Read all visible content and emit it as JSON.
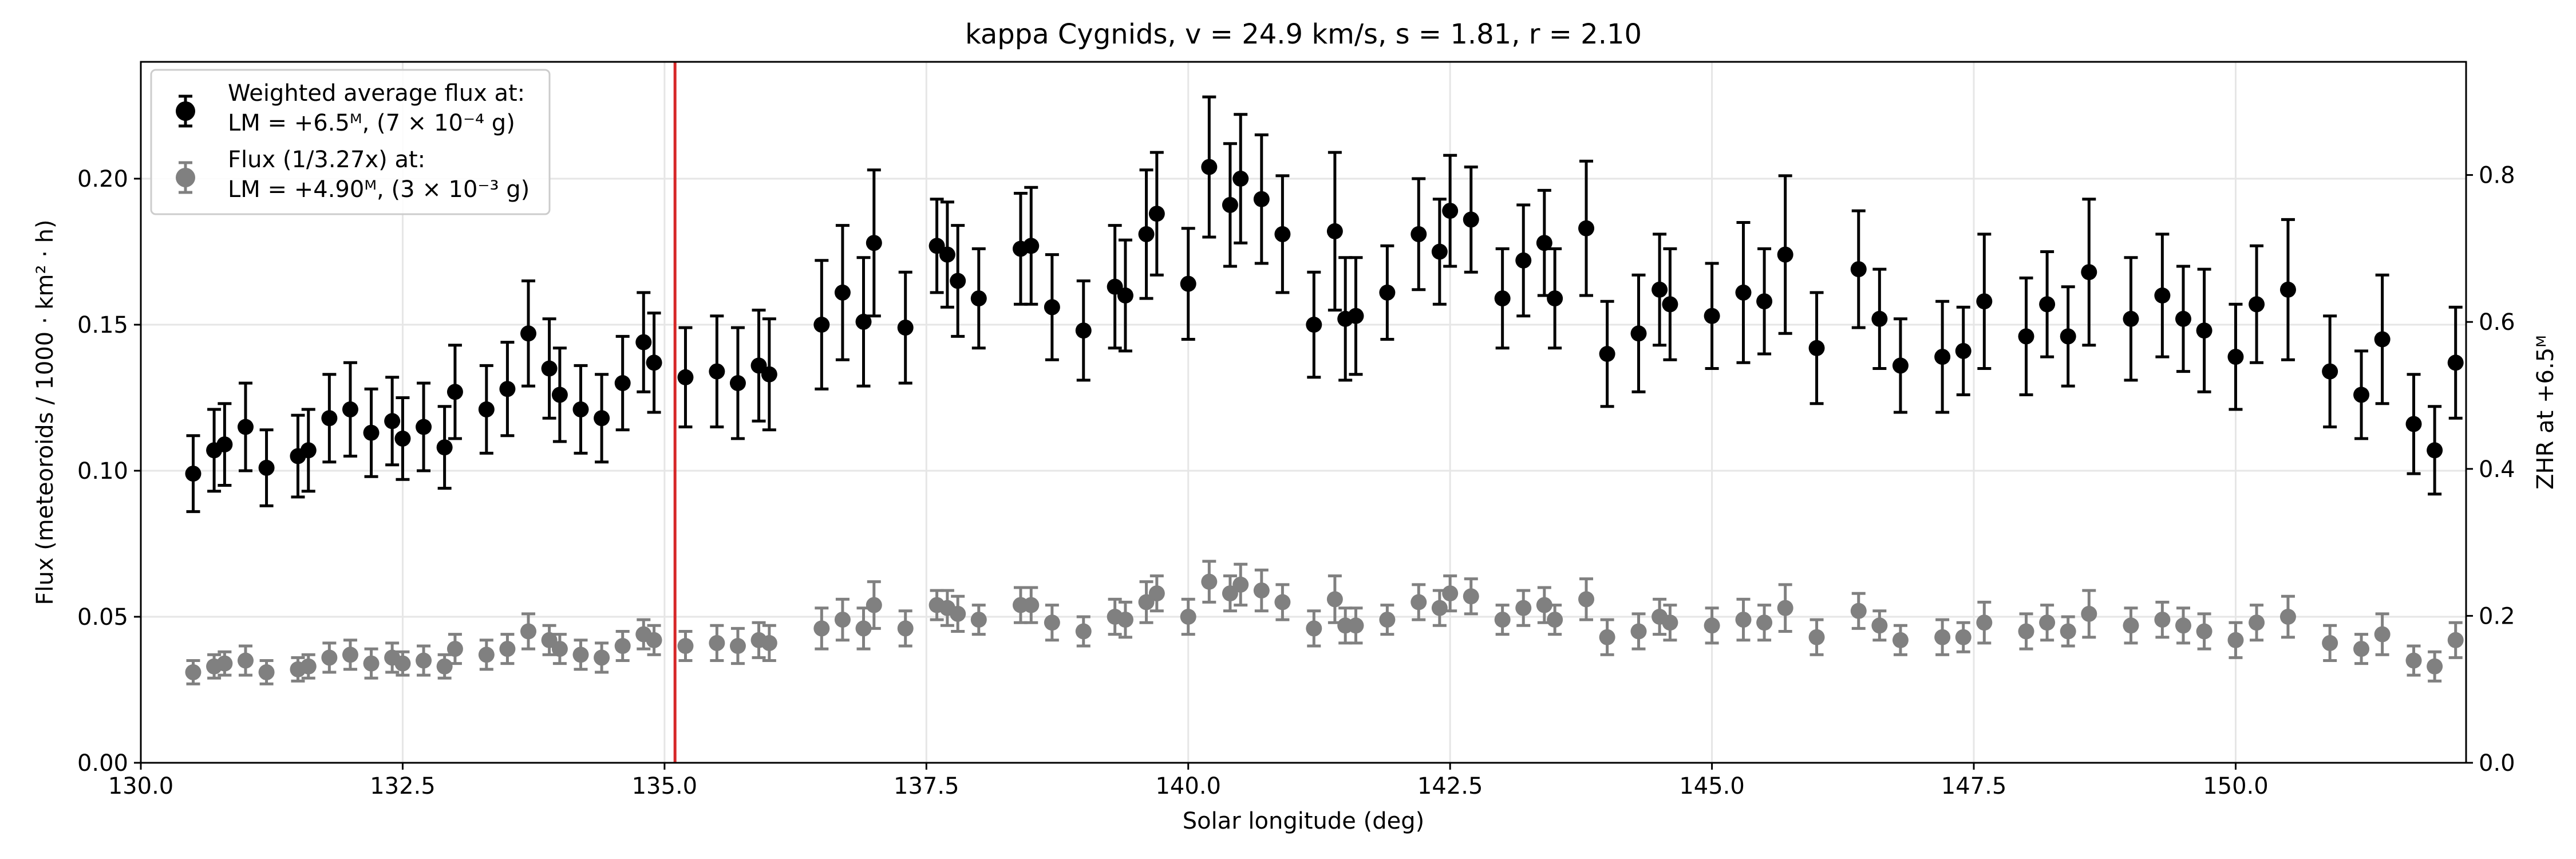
{
  "chart_data": {
    "type": "scatter",
    "title": "kappa Cygnids, v = 24.9 km/s, s = 1.81, r = 2.10",
    "xlabel": "Solar longitude (deg)",
    "ylabel_left": "Flux (meteoroids / 1000 · km² · h)",
    "ylabel_right": "ZHR at +6.5ᴹ",
    "xlim": [
      130.0,
      152.2
    ],
    "ylim_left": [
      0.0,
      0.24
    ],
    "ylim_right": [
      0.0,
      0.954
    ],
    "x_ticks": [
      130.0,
      132.5,
      135.0,
      137.5,
      140.0,
      142.5,
      145.0,
      147.5,
      150.0
    ],
    "x_tick_labels": [
      "130.0",
      "132.5",
      "135.0",
      "137.5",
      "140.0",
      "142.5",
      "145.0",
      "147.5",
      "150.0"
    ],
    "y_ticks_left": [
      0.0,
      0.05,
      0.1,
      0.15,
      0.2
    ],
    "y_tick_labels_left": [
      "0.00",
      "0.05",
      "0.10",
      "0.15",
      "0.20"
    ],
    "y_ticks_right": [
      0.0,
      0.2,
      0.4,
      0.6,
      0.8
    ],
    "y_tick_labels_right": [
      "0.0",
      "0.2",
      "0.4",
      "0.6",
      "0.8"
    ],
    "grid": true,
    "legend_position": "top-left",
    "vertical_line": {
      "x": 135.1,
      "color": "#d62728"
    },
    "x": [
      130.5,
      130.7,
      130.8,
      131.0,
      131.2,
      131.5,
      131.6,
      131.8,
      132.0,
      132.2,
      132.4,
      132.5,
      132.7,
      132.9,
      133.0,
      133.3,
      133.5,
      133.7,
      133.9,
      134.0,
      134.2,
      134.4,
      134.6,
      134.8,
      134.9,
      135.2,
      135.5,
      135.7,
      135.9,
      136.0,
      136.5,
      136.7,
      136.9,
      137.0,
      137.3,
      137.6,
      137.7,
      137.8,
      138.0,
      138.4,
      138.5,
      138.7,
      139.0,
      139.3,
      139.4,
      139.6,
      139.7,
      140.0,
      140.2,
      140.4,
      140.5,
      140.7,
      140.9,
      141.2,
      141.4,
      141.5,
      141.6,
      141.9,
      142.2,
      142.4,
      142.5,
      142.7,
      143.0,
      143.2,
      143.4,
      143.5,
      143.8,
      144.0,
      144.3,
      144.5,
      144.6,
      145.0,
      145.3,
      145.5,
      145.7,
      146.0,
      146.4,
      146.6,
      146.8,
      147.2,
      147.4,
      147.6,
      148.0,
      148.2,
      148.4,
      148.6,
      149.0,
      149.3,
      149.5,
      149.7,
      150.0,
      150.2,
      150.5,
      150.9,
      151.2,
      151.4,
      151.7,
      151.9,
      152.1
    ],
    "series": [
      {
        "name": "Weighted average flux at: LM = +6.5ᴹ, (7 × 10⁻⁴ g)",
        "color": "#000000",
        "y": [
          0.099,
          0.107,
          0.109,
          0.115,
          0.101,
          0.105,
          0.107,
          0.118,
          0.121,
          0.113,
          0.117,
          0.111,
          0.115,
          0.108,
          0.127,
          0.121,
          0.128,
          0.147,
          0.135,
          0.126,
          0.121,
          0.118,
          0.13,
          0.144,
          0.137,
          0.132,
          0.134,
          0.13,
          0.136,
          0.133,
          0.15,
          0.161,
          0.151,
          0.178,
          0.149,
          0.177,
          0.174,
          0.165,
          0.159,
          0.176,
          0.177,
          0.156,
          0.148,
          0.163,
          0.16,
          0.181,
          0.188,
          0.164,
          0.204,
          0.191,
          0.2,
          0.193,
          0.181,
          0.15,
          0.182,
          0.152,
          0.153,
          0.161,
          0.181,
          0.175,
          0.189,
          0.186,
          0.159,
          0.172,
          0.178,
          0.159,
          0.183,
          0.14,
          0.147,
          0.162,
          0.157,
          0.153,
          0.161,
          0.158,
          0.174,
          0.142,
          0.169,
          0.152,
          0.136,
          0.139,
          0.141,
          0.158,
          0.146,
          0.157,
          0.146,
          0.168,
          0.152,
          0.16,
          0.152,
          0.148,
          0.139,
          0.157,
          0.162,
          0.134,
          0.126,
          0.145,
          0.116,
          0.107,
          0.137
        ],
        "err": [
          0.013,
          0.014,
          0.014,
          0.015,
          0.013,
          0.014,
          0.014,
          0.015,
          0.016,
          0.015,
          0.015,
          0.014,
          0.015,
          0.014,
          0.016,
          0.015,
          0.016,
          0.018,
          0.017,
          0.016,
          0.015,
          0.015,
          0.016,
          0.017,
          0.017,
          0.017,
          0.019,
          0.019,
          0.019,
          0.019,
          0.022,
          0.023,
          0.022,
          0.025,
          0.019,
          0.016,
          0.018,
          0.019,
          0.017,
          0.019,
          0.02,
          0.018,
          0.017,
          0.021,
          0.019,
          0.022,
          0.021,
          0.019,
          0.024,
          0.021,
          0.022,
          0.022,
          0.02,
          0.018,
          0.027,
          0.021,
          0.02,
          0.016,
          0.019,
          0.018,
          0.019,
          0.018,
          0.017,
          0.019,
          0.018,
          0.017,
          0.023,
          0.018,
          0.02,
          0.019,
          0.019,
          0.018,
          0.024,
          0.018,
          0.027,
          0.019,
          0.02,
          0.017,
          0.016,
          0.019,
          0.015,
          0.023,
          0.02,
          0.018,
          0.017,
          0.025,
          0.021,
          0.021,
          0.018,
          0.021,
          0.018,
          0.02,
          0.024,
          0.019,
          0.015,
          0.022,
          0.017,
          0.015,
          0.019
        ]
      },
      {
        "name": "Flux (1/3.27x) at: LM = +4.90ᴹ, (3 × 10⁻³ g)",
        "color": "#808080",
        "y": [
          0.031,
          0.033,
          0.034,
          0.035,
          0.031,
          0.032,
          0.033,
          0.036,
          0.037,
          0.034,
          0.036,
          0.034,
          0.035,
          0.033,
          0.039,
          0.037,
          0.039,
          0.045,
          0.042,
          0.039,
          0.037,
          0.036,
          0.04,
          0.044,
          0.042,
          0.04,
          0.041,
          0.04,
          0.042,
          0.041,
          0.046,
          0.049,
          0.046,
          0.054,
          0.046,
          0.054,
          0.053,
          0.051,
          0.049,
          0.054,
          0.054,
          0.048,
          0.045,
          0.05,
          0.049,
          0.055,
          0.058,
          0.05,
          0.062,
          0.058,
          0.061,
          0.059,
          0.055,
          0.046,
          0.056,
          0.047,
          0.047,
          0.049,
          0.055,
          0.053,
          0.058,
          0.057,
          0.049,
          0.053,
          0.054,
          0.049,
          0.056,
          0.043,
          0.045,
          0.05,
          0.048,
          0.047,
          0.049,
          0.048,
          0.053,
          0.043,
          0.052,
          0.047,
          0.042,
          0.043,
          0.043,
          0.048,
          0.045,
          0.048,
          0.045,
          0.051,
          0.047,
          0.049,
          0.047,
          0.045,
          0.042,
          0.048,
          0.05,
          0.041,
          0.039,
          0.044,
          0.035,
          0.033,
          0.042
        ],
        "err": [
          0.004,
          0.004,
          0.004,
          0.005,
          0.004,
          0.004,
          0.004,
          0.005,
          0.005,
          0.005,
          0.005,
          0.004,
          0.005,
          0.004,
          0.005,
          0.005,
          0.005,
          0.006,
          0.005,
          0.005,
          0.005,
          0.005,
          0.005,
          0.005,
          0.005,
          0.005,
          0.006,
          0.006,
          0.006,
          0.006,
          0.007,
          0.007,
          0.007,
          0.008,
          0.006,
          0.005,
          0.006,
          0.006,
          0.005,
          0.006,
          0.006,
          0.006,
          0.005,
          0.006,
          0.006,
          0.007,
          0.006,
          0.006,
          0.007,
          0.006,
          0.007,
          0.007,
          0.006,
          0.006,
          0.008,
          0.006,
          0.006,
          0.005,
          0.006,
          0.006,
          0.006,
          0.006,
          0.005,
          0.006,
          0.006,
          0.005,
          0.007,
          0.006,
          0.006,
          0.006,
          0.006,
          0.006,
          0.007,
          0.006,
          0.008,
          0.006,
          0.006,
          0.005,
          0.005,
          0.006,
          0.005,
          0.007,
          0.006,
          0.006,
          0.005,
          0.008,
          0.006,
          0.006,
          0.006,
          0.006,
          0.006,
          0.006,
          0.007,
          0.006,
          0.005,
          0.007,
          0.005,
          0.005,
          0.006
        ]
      }
    ]
  }
}
